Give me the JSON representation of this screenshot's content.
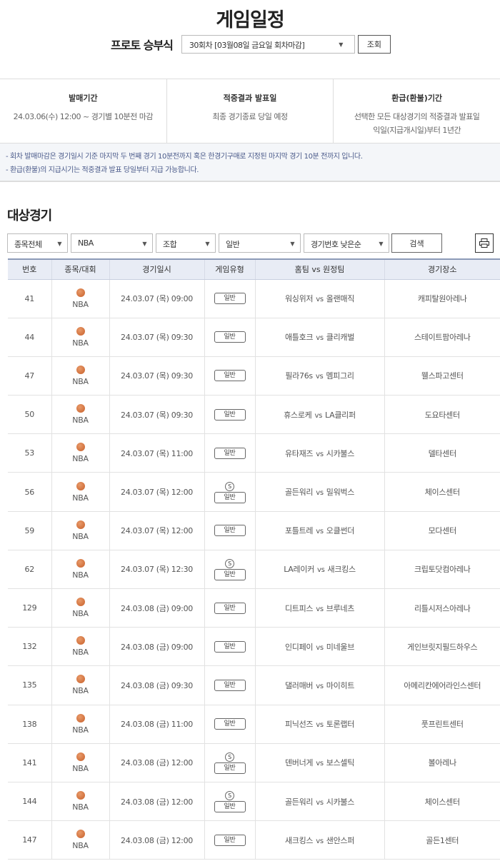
{
  "header": {
    "title": "게임일정",
    "round_label": "프로토 승부식",
    "round_value": "30회차 [03월08일 금요일 회차마감]",
    "query_button": "조회"
  },
  "info": [
    {
      "heading": "발매기간",
      "lines": [
        "24.03.06(수) 12:00 ~ 경기별 10분전 마감"
      ]
    },
    {
      "heading": "적중결과 발표일",
      "lines": [
        "최종 경기종료 당일 예정"
      ]
    },
    {
      "heading": "환급(환불)기간",
      "lines": [
        "선택한 모든 대상경기의 적중결과 발표일",
        "익일(지급개시일)부터 1년간"
      ]
    }
  ],
  "notes": [
    "- 회차 발매마감은 경기일시 기준 마지막 두 번째 경기 10분전까지 혹은 한경기구매로 지정된 마지막 경기 10분 전까지 입니다.",
    "- 환급(환불)의 지급시기는 적중결과 발표 당일부터 지급 가능합니다."
  ],
  "section_title": "대상경기",
  "filters": {
    "sport": "종목전체",
    "league": "NBA",
    "combo": "조합",
    "type": "일반",
    "sort": "경기번호 낮은순",
    "search_button": "검색",
    "print_icon": "printer-icon"
  },
  "table": {
    "headers": [
      "번호",
      "종목/대회",
      "경기일시",
      "게임유형",
      "홈팀 vs 원정팀",
      "경기장소"
    ],
    "vs": "vs",
    "sport_icon": "basketball-icon",
    "rows": [
      {
        "no": "41",
        "league": "NBA",
        "datetime": "24.03.07 (목) 09:00",
        "special": false,
        "type": "일반",
        "home": "워싱위저",
        "away": "올랜매직",
        "venue": "캐피탈원아레나"
      },
      {
        "no": "44",
        "league": "NBA",
        "datetime": "24.03.07 (목) 09:30",
        "special": false,
        "type": "일반",
        "home": "애틀호크",
        "away": "클리캐벌",
        "venue": "스테이트팜아레나"
      },
      {
        "no": "47",
        "league": "NBA",
        "datetime": "24.03.07 (목) 09:30",
        "special": false,
        "type": "일반",
        "home": "필라76s",
        "away": "멤피그리",
        "venue": "웰스파고센터"
      },
      {
        "no": "50",
        "league": "NBA",
        "datetime": "24.03.07 (목) 09:30",
        "special": false,
        "type": "일반",
        "home": "휴스로케",
        "away": "LA클리퍼",
        "venue": "도요타센터"
      },
      {
        "no": "53",
        "league": "NBA",
        "datetime": "24.03.07 (목) 11:00",
        "special": false,
        "type": "일반",
        "home": "유타재즈",
        "away": "시카불스",
        "venue": "델타센터"
      },
      {
        "no": "56",
        "league": "NBA",
        "datetime": "24.03.07 (목) 12:00",
        "special": true,
        "type": "일반",
        "home": "골든워리",
        "away": "밀워벅스",
        "venue": "체이스센터"
      },
      {
        "no": "59",
        "league": "NBA",
        "datetime": "24.03.07 (목) 12:00",
        "special": false,
        "type": "일반",
        "home": "포틀트레",
        "away": "오클썬더",
        "venue": "모다센터"
      },
      {
        "no": "62",
        "league": "NBA",
        "datetime": "24.03.07 (목) 12:30",
        "special": true,
        "type": "일반",
        "home": "LA레이커",
        "away": "새크킹스",
        "venue": "크립토닷컴아레나"
      },
      {
        "no": "129",
        "league": "NBA",
        "datetime": "24.03.08 (금) 09:00",
        "special": false,
        "type": "일반",
        "home": "디트피스",
        "away": "브루네츠",
        "venue": "리틀시저스아레나"
      },
      {
        "no": "132",
        "league": "NBA",
        "datetime": "24.03.08 (금) 09:00",
        "special": false,
        "type": "일반",
        "home": "인디페이",
        "away": "미네울브",
        "venue": "게인브릿지필드하우스"
      },
      {
        "no": "135",
        "league": "NBA",
        "datetime": "24.03.08 (금) 09:30",
        "special": false,
        "type": "일반",
        "home": "댈러매버",
        "away": "마이히트",
        "venue": "아메리칸에어라인스센터"
      },
      {
        "no": "138",
        "league": "NBA",
        "datetime": "24.03.08 (금) 11:00",
        "special": false,
        "type": "일반",
        "home": "피닉선즈",
        "away": "토론랩터",
        "venue": "풋프린트센터"
      },
      {
        "no": "141",
        "league": "NBA",
        "datetime": "24.03.08 (금) 12:00",
        "special": true,
        "type": "일반",
        "home": "덴버너게",
        "away": "보스셀틱",
        "venue": "볼아레나"
      },
      {
        "no": "144",
        "league": "NBA",
        "datetime": "24.03.08 (금) 12:00",
        "special": true,
        "type": "일반",
        "home": "골든워리",
        "away": "시카불스",
        "venue": "체이스센터"
      },
      {
        "no": "147",
        "league": "NBA",
        "datetime": "24.03.08 (금) 12:00",
        "special": false,
        "type": "일반",
        "home": "새크킹스",
        "away": "샌안스퍼",
        "venue": "골든1센터"
      }
    ],
    "special_badge": "S"
  }
}
